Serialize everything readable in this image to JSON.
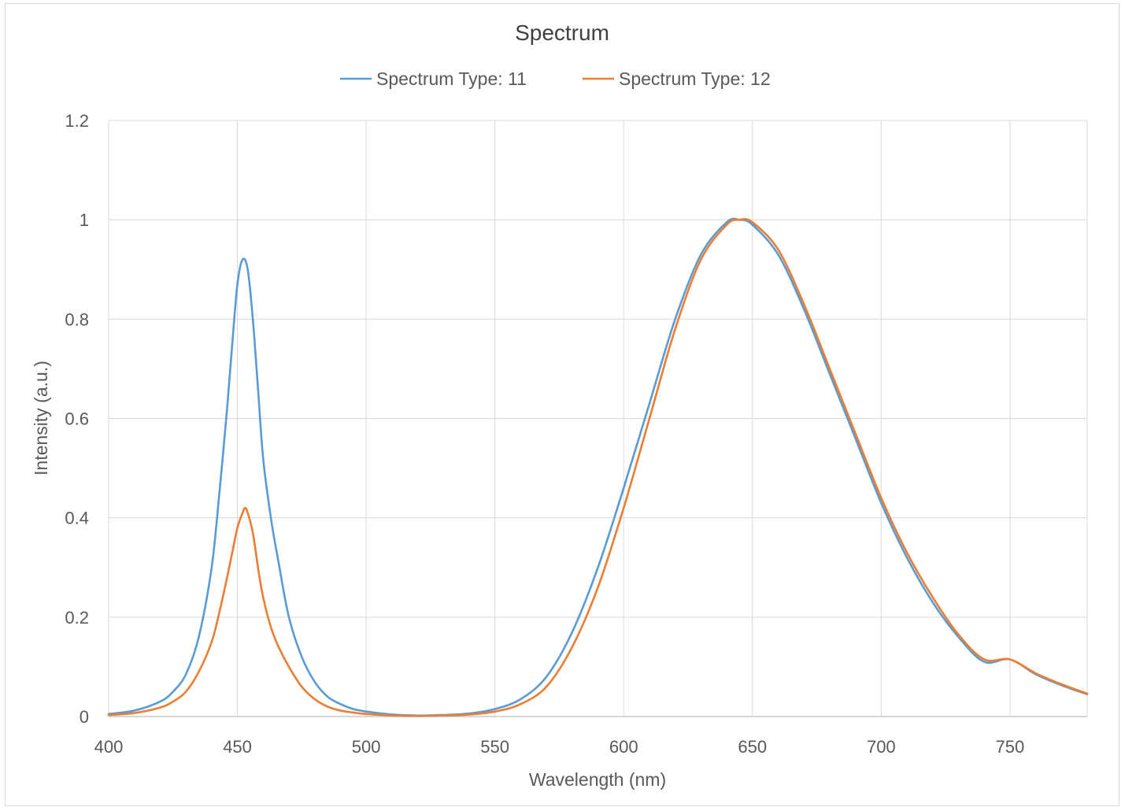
{
  "chart_data": {
    "type": "line",
    "title": "Spectrum",
    "xlabel": "Wavelength (nm)",
    "ylabel": "Intensity (a.u.)",
    "xlim": [
      400,
      780
    ],
    "ylim": [
      0,
      1.2
    ],
    "x_ticks": [
      400,
      450,
      500,
      550,
      600,
      650,
      700,
      750
    ],
    "y_ticks": [
      0,
      0.2,
      0.4,
      0.6,
      0.8,
      1,
      1.2
    ],
    "x_tick_labels": [
      "400",
      "450",
      "500",
      "550",
      "600",
      "650",
      "700",
      "750"
    ],
    "y_tick_labels": [
      "0",
      "0.2",
      "0.4",
      "0.6",
      "0.8",
      "1",
      "1.2"
    ],
    "grid": true,
    "legend_position": "top-center",
    "series": [
      {
        "name": "Spectrum Type: 11",
        "color": "#5B9BD5",
        "x": [
          400,
          410,
          420,
          425,
          430,
          435,
          440,
          443,
          446,
          448,
          450,
          452,
          454,
          456,
          458,
          460,
          463,
          466,
          470,
          475,
          480,
          485,
          490,
          495,
          500,
          510,
          520,
          530,
          540,
          550,
          560,
          570,
          580,
          590,
          600,
          610,
          620,
          630,
          640,
          645,
          650,
          660,
          670,
          680,
          690,
          700,
          710,
          720,
          730,
          740,
          750,
          760,
          770,
          780
        ],
        "y": [
          0.005,
          0.012,
          0.03,
          0.05,
          0.085,
          0.16,
          0.3,
          0.45,
          0.62,
          0.75,
          0.87,
          0.92,
          0.9,
          0.8,
          0.66,
          0.52,
          0.4,
          0.31,
          0.2,
          0.12,
          0.07,
          0.04,
          0.025,
          0.015,
          0.01,
          0.004,
          0.002,
          0.003,
          0.006,
          0.015,
          0.035,
          0.08,
          0.17,
          0.3,
          0.46,
          0.63,
          0.8,
          0.93,
          0.995,
          1.0,
          0.99,
          0.93,
          0.82,
          0.69,
          0.56,
          0.43,
          0.32,
          0.23,
          0.16,
          0.11,
          0.115,
          0.085,
          0.063,
          0.045
        ]
      },
      {
        "name": "Spectrum Type: 12",
        "color": "#ED7D31",
        "x": [
          400,
          410,
          420,
          425,
          430,
          435,
          440,
          443,
          446,
          448,
          450,
          452,
          453,
          454,
          456,
          458,
          460,
          463,
          466,
          470,
          475,
          480,
          485,
          490,
          495,
          500,
          510,
          520,
          530,
          540,
          550,
          560,
          570,
          580,
          590,
          600,
          610,
          620,
          630,
          640,
          645,
          650,
          660,
          670,
          680,
          690,
          700,
          710,
          720,
          730,
          740,
          750,
          760,
          770,
          780
        ],
        "y": [
          0.003,
          0.007,
          0.018,
          0.03,
          0.05,
          0.09,
          0.15,
          0.21,
          0.28,
          0.33,
          0.38,
          0.41,
          0.42,
          0.41,
          0.37,
          0.3,
          0.24,
          0.18,
          0.14,
          0.1,
          0.06,
          0.035,
          0.02,
          0.012,
          0.008,
          0.005,
          0.002,
          0.001,
          0.002,
          0.004,
          0.01,
          0.025,
          0.06,
          0.14,
          0.26,
          0.42,
          0.6,
          0.78,
          0.92,
          0.99,
          1.0,
          0.995,
          0.94,
          0.83,
          0.7,
          0.57,
          0.44,
          0.33,
          0.24,
          0.165,
          0.115,
          0.115,
          0.087,
          0.065,
          0.046
        ]
      }
    ]
  }
}
